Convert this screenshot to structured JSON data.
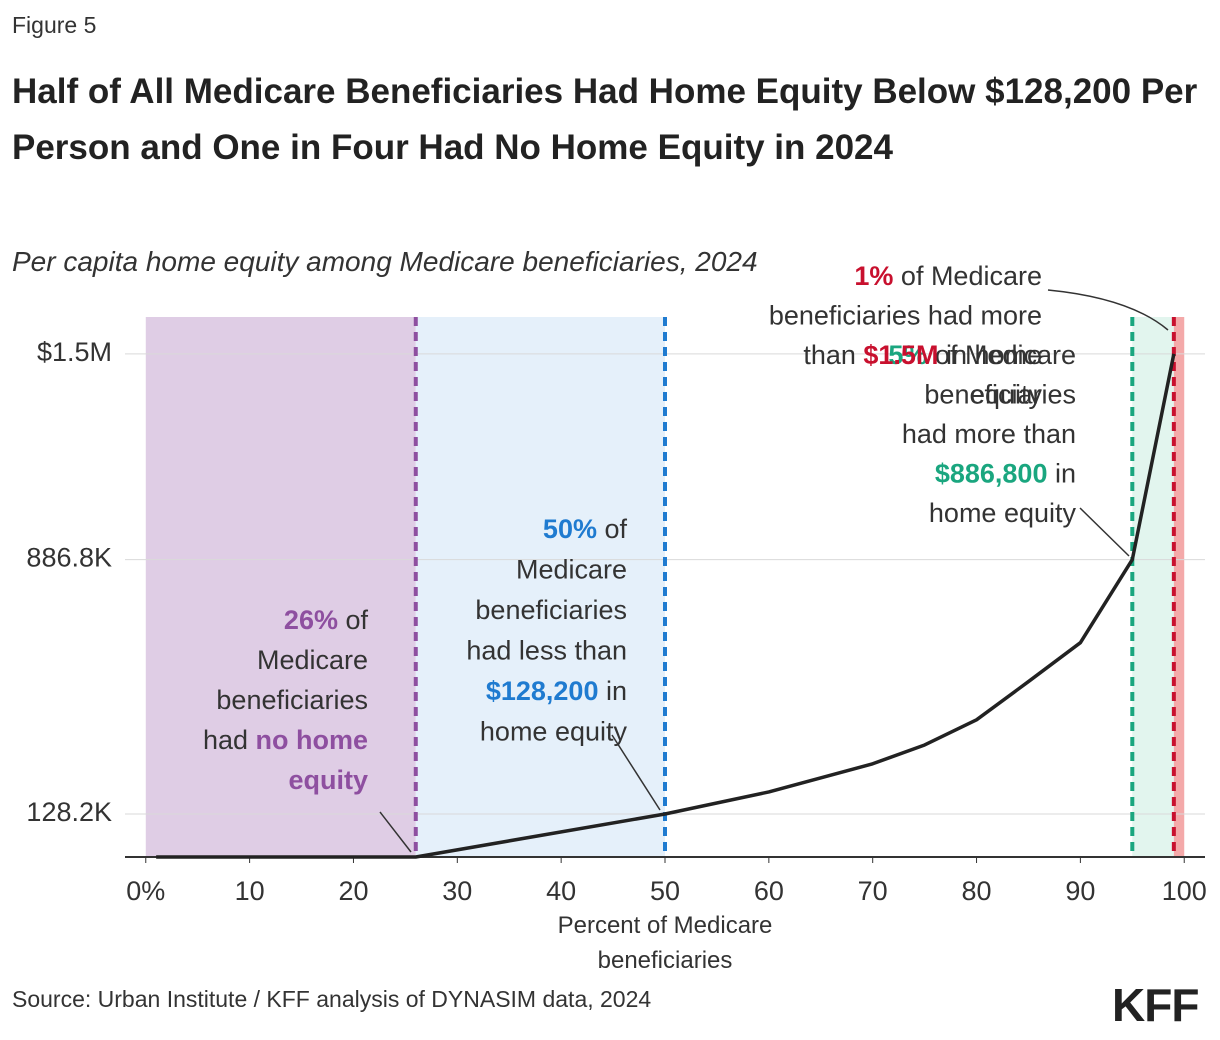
{
  "figure_label": "Figure 5",
  "chart_data": {
    "type": "line",
    "title": "Half of All Medicare Beneficiaries Had Home Equity Below $128,200 Per Person and One in Four Had No Home Equity in 2024",
    "subtitle": "Per capita home equity among Medicare beneficiaries, 2024",
    "x_label": "Percent of Medicare beneficiaries",
    "x": [
      1,
      25,
      26,
      50,
      60,
      70,
      75,
      80,
      85,
      90,
      95,
      99
    ],
    "series": [
      {
        "color": "#222222",
        "values": [
          0,
          0,
          0,
          128200,
          194000,
          278000,
          334000,
          409000,
          523000,
          639000,
          886800,
          1500000
        ]
      }
    ],
    "xlim": [
      -2,
      102
    ],
    "xticks": [
      {
        "value": 0,
        "label": "0%"
      },
      10,
      20,
      30,
      40,
      50,
      60,
      70,
      80,
      90,
      100
    ],
    "ylim": [
      0,
      1610000
    ],
    "yticks": [
      {
        "value": 128200,
        "label": "128.2K"
      },
      {
        "value": 886800,
        "label": "886.8K"
      },
      {
        "value": 1500000,
        "label": "$1.5M"
      }
    ],
    "grid": true,
    "regions": [
      {
        "from": 0,
        "to": 26,
        "fill": "#dfcde5",
        "line": "#8e4fa0"
      },
      {
        "from": 26,
        "to": 50,
        "fill": "#e5f0fa",
        "line": "#1f7bd0"
      },
      {
        "from": 95,
        "to": 99,
        "fill": "#e2f5ee",
        "line": "#1aa67f"
      },
      {
        "from": 99,
        "to": 100,
        "fill": "#f4a9a9",
        "line": "#c8102e"
      }
    ],
    "annotations": [
      {
        "color": "#8e4fa0",
        "lines": [
          [
            {
              "t": "26%",
              "hl": true
            },
            {
              "t": " of"
            }
          ],
          [
            {
              "t": "Medicare"
            }
          ],
          [
            {
              "t": "beneficiaries"
            }
          ],
          [
            {
              "t": "had "
            },
            {
              "t": "no home",
              "hl": true
            }
          ],
          [
            {
              "t": "equity",
              "hl": true
            }
          ]
        ]
      },
      {
        "color": "#1f7bd0",
        "lines": [
          [
            {
              "t": "50%",
              "hl": true
            },
            {
              "t": " of"
            }
          ],
          [
            {
              "t": "Medicare"
            }
          ],
          [
            {
              "t": "beneficiaries"
            }
          ],
          [
            {
              "t": "had less than"
            }
          ],
          [
            {
              "t": "$128,200",
              "hl": true
            },
            {
              "t": " in"
            }
          ],
          [
            {
              "t": "home equity"
            }
          ]
        ]
      },
      {
        "color": "#1aa67f",
        "lines": [
          [
            {
              "t": "5%",
              "hl": true
            },
            {
              "t": " of Medicare"
            }
          ],
          [
            {
              "t": "beneficiaries"
            }
          ],
          [
            {
              "t": "had more than"
            }
          ],
          [
            {
              "t": "$886,800",
              "hl": true
            },
            {
              "t": " in"
            }
          ],
          [
            {
              "t": "home equity"
            }
          ]
        ]
      },
      {
        "color": "#c8102e",
        "lines": [
          [
            {
              "t": "1%",
              "hl": true
            },
            {
              "t": " of Medicare"
            }
          ],
          [
            {
              "t": "beneficiaries had more"
            }
          ],
          [
            {
              "t": "than "
            },
            {
              "t": "$1.5M",
              "hl": true
            },
            {
              "t": " in home"
            }
          ],
          [
            {
              "t": "equity"
            }
          ]
        ]
      }
    ]
  },
  "source": "Source: Urban Institute / KFF analysis of DYNASIM data, 2024",
  "logo": "KFF"
}
